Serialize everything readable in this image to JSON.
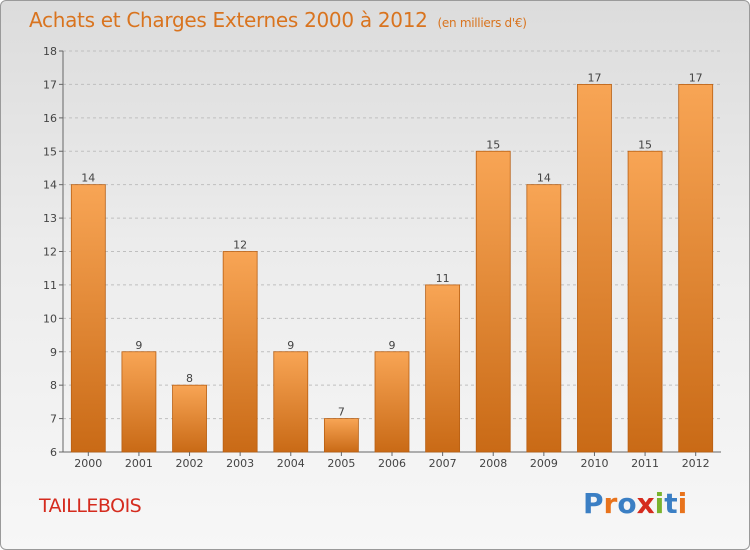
{
  "header": {
    "title": "Achats et Charges Externes 2000 à 2012",
    "unit": "(en milliers d'€)"
  },
  "footer": {
    "commune": "TAILLEBOIS",
    "logo_text": "Proxiti",
    "logo_colors": [
      "#3b7fc4",
      "#e8731c",
      "#3b7fc4",
      "#d52b1e",
      "#7ab32e",
      "#3b7fc4",
      "#e8731c"
    ]
  },
  "colors": {
    "bar_top": "#f8a555",
    "bar_bottom": "#c96a16",
    "bar_edge": "#b85f13",
    "axis": "#666666",
    "grid": "#bfbfbf",
    "label": "#444444"
  },
  "chart_data": {
    "type": "bar",
    "categories": [
      "2000",
      "2001",
      "2002",
      "2003",
      "2004",
      "2005",
      "2006",
      "2007",
      "2008",
      "2009",
      "2010",
      "2011",
      "2012"
    ],
    "values": [
      14,
      9,
      8,
      12,
      9,
      7,
      9,
      11,
      15,
      14,
      17,
      15,
      17
    ],
    "data_labels": [
      "14",
      "9",
      "8",
      "12",
      "9",
      "7",
      "9",
      "11",
      "15",
      "14",
      "17",
      "15",
      "17"
    ],
    "title": "Achats et Charges Externes 2000 à 2012",
    "xlabel": "",
    "ylabel": "",
    "ylim": [
      6,
      18
    ],
    "yticks": [
      "6",
      "7",
      "8",
      "9",
      "10",
      "11",
      "12",
      "13",
      "14",
      "15",
      "16",
      "17",
      "18"
    ],
    "grid": true,
    "legend": "none"
  }
}
